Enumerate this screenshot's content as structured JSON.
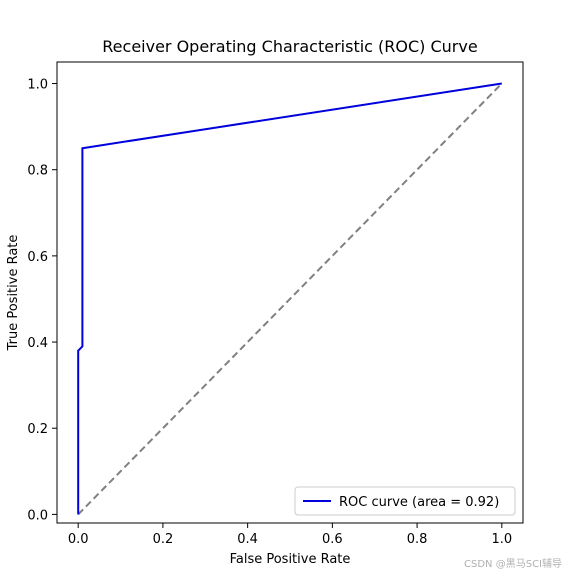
{
  "chart_data": {
    "type": "line",
    "title": "Receiver Operating Characteristic (ROC) Curve",
    "xlabel": "False Positive Rate",
    "ylabel": "True Positive Rate",
    "xlim": [
      -0.05,
      1.05
    ],
    "ylim": [
      -0.02,
      1.05
    ],
    "xticks": [
      "0.0",
      "0.2",
      "0.4",
      "0.6",
      "0.8",
      "1.0"
    ],
    "yticks": [
      "0.0",
      "0.2",
      "0.4",
      "0.6",
      "0.8",
      "1.0"
    ],
    "grid": false,
    "legend_position": "lower-right",
    "series": [
      {
        "name": "ROC curve (area = 0.92)",
        "color": "#0000dd",
        "style": "solid",
        "x": [
          0.0,
          0.0,
          0.01,
          0.01,
          1.0
        ],
        "y": [
          0.0,
          0.38,
          0.39,
          0.85,
          1.0
        ]
      },
      {
        "color": "#808080",
        "style": "dashed",
        "x": [
          0.0,
          1.0
        ],
        "y": [
          0.0,
          1.0
        ]
      }
    ]
  },
  "watermark": "CSDN @黑马SCI辅导"
}
